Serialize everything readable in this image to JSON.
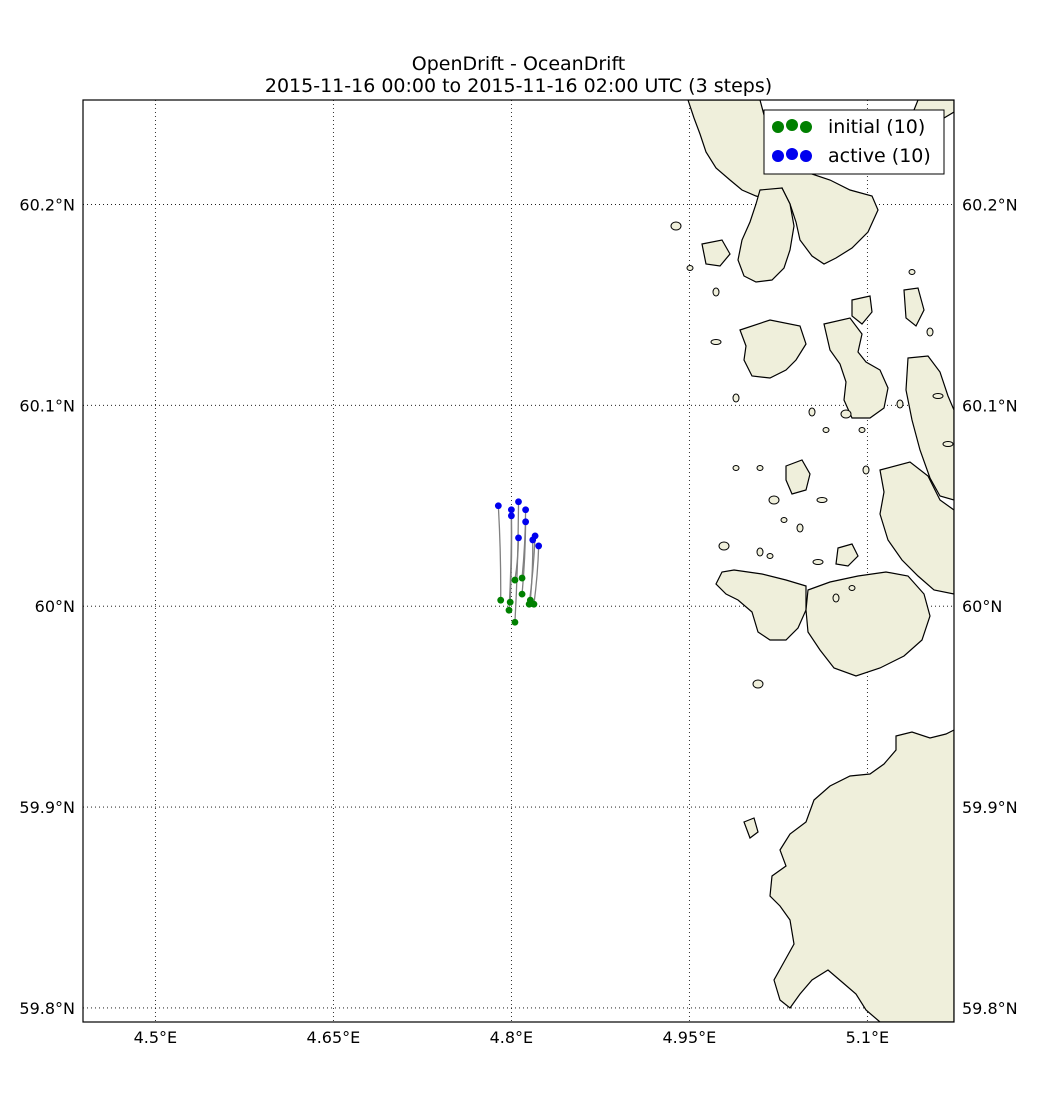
{
  "chart_data": {
    "type": "scatter",
    "title": "OpenDrift - OceanDrift",
    "subtitle": "2015-11-16 00:00 to 2015-11-16 02:00 UTC (3 steps)",
    "xlim": [
      4.439,
      5.173
    ],
    "ylim": [
      59.793,
      60.252
    ],
    "x_ticks": [
      4.5,
      4.65,
      4.8,
      4.95,
      5.1
    ],
    "x_tick_labels": [
      "4.5°E",
      "4.65°E",
      "4.8°E",
      "4.95°E",
      "5.1°E"
    ],
    "y_ticks": [
      59.8,
      59.9,
      60.0,
      60.1,
      60.2
    ],
    "y_tick_labels": [
      "59.8°N",
      "59.9°N",
      "60°N",
      "60.1°N",
      "60.2°N"
    ],
    "y_labels_both_sides": true,
    "grid": true,
    "legend_position": "top-right",
    "series": [
      {
        "name": "initial (10)",
        "color": "#008000",
        "points": [
          [
            4.791,
            60.003
          ],
          [
            4.799,
            60.002
          ],
          [
            4.798,
            59.998
          ],
          [
            4.803,
            59.992
          ],
          [
            4.803,
            60.013
          ],
          [
            4.809,
            60.014
          ],
          [
            4.809,
            60.006
          ],
          [
            4.816,
            60.003
          ],
          [
            4.815,
            60.001
          ],
          [
            4.819,
            60.001
          ]
        ]
      },
      {
        "name": "active (10)",
        "color": "#0000ee",
        "points": [
          [
            4.789,
            60.05
          ],
          [
            4.8,
            60.048
          ],
          [
            4.8,
            60.045
          ],
          [
            4.806,
            60.052
          ],
          [
            4.806,
            60.034
          ],
          [
            4.812,
            60.048
          ],
          [
            4.812,
            60.042
          ],
          [
            4.818,
            60.033
          ],
          [
            4.82,
            60.035
          ],
          [
            4.823,
            60.03
          ]
        ]
      }
    ],
    "trajectory_color": "#808080",
    "land_color": "#efefdb",
    "coast_color": "#000000"
  }
}
